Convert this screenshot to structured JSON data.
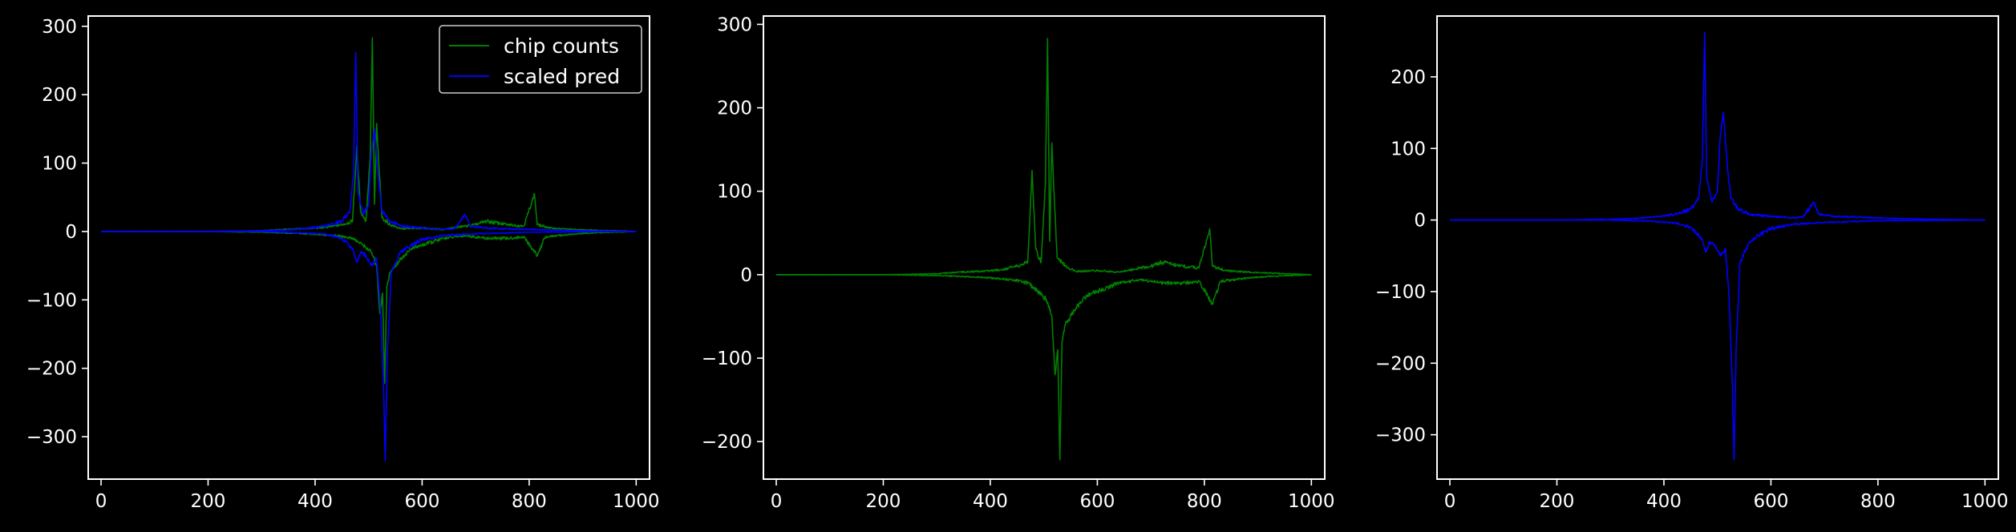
{
  "colors": {
    "background": "#000000",
    "chip": "#008000",
    "pred": "#0000ff",
    "frame": "#ffffff"
  },
  "chart_data": [
    {
      "type": "line",
      "legend": {
        "placement": "top-right",
        "entries": [
          "chip counts",
          "scaled pred"
        ]
      },
      "xlim": [
        -24,
        1025
      ],
      "ylim": [
        -362,
        315
      ],
      "xticks": [
        0,
        200,
        400,
        600,
        800,
        1000
      ],
      "yticks": [
        -300,
        -200,
        -100,
        0,
        100,
        200,
        300
      ],
      "xtick_labels": [
        "0",
        "200",
        "400",
        "600",
        "800",
        "1000"
      ],
      "ytick_labels": [
        "−300",
        "−200",
        "−100",
        "0",
        "100",
        "200",
        "300"
      ],
      "series": [
        {
          "name": "chip counts",
          "color": "#008000",
          "upper": [
            [
              0,
              0
            ],
            [
              100,
              0
            ],
            [
              200,
              0
            ],
            [
              300,
              1
            ],
            [
              340,
              3
            ],
            [
              380,
              4
            ],
            [
              420,
              6
            ],
            [
              450,
              10
            ],
            [
              470,
              15
            ],
            [
              478,
              125
            ],
            [
              485,
              30
            ],
            [
              495,
              15
            ],
            [
              503,
              110
            ],
            [
              507,
              283
            ],
            [
              511,
              40
            ],
            [
              515,
              158
            ],
            [
              519,
              100
            ],
            [
              525,
              20
            ],
            [
              540,
              10
            ],
            [
              560,
              4
            ],
            [
              600,
              5
            ],
            [
              640,
              3
            ],
            [
              680,
              8
            ],
            [
              700,
              10
            ],
            [
              720,
              15
            ],
            [
              760,
              10
            ],
            [
              790,
              8
            ],
            [
              810,
              55
            ],
            [
              815,
              10
            ],
            [
              840,
              5
            ],
            [
              880,
              3
            ],
            [
              920,
              2
            ],
            [
              1000,
              0
            ]
          ],
          "lower": [
            [
              0,
              0
            ],
            [
              100,
              0
            ],
            [
              200,
              0
            ],
            [
              300,
              -1
            ],
            [
              340,
              -2
            ],
            [
              380,
              -3
            ],
            [
              420,
              -5
            ],
            [
              450,
              -7
            ],
            [
              470,
              -10
            ],
            [
              490,
              -20
            ],
            [
              505,
              -30
            ],
            [
              515,
              -50
            ],
            [
              521,
              -120
            ],
            [
              526,
              -90
            ],
            [
              530,
              -222
            ],
            [
              534,
              -80
            ],
            [
              540,
              -60
            ],
            [
              560,
              -40
            ],
            [
              580,
              -25
            ],
            [
              600,
              -20
            ],
            [
              640,
              -10
            ],
            [
              680,
              -6
            ],
            [
              720,
              -10
            ],
            [
              760,
              -10
            ],
            [
              790,
              -8
            ],
            [
              815,
              -35
            ],
            [
              830,
              -8
            ],
            [
              880,
              -4
            ],
            [
              920,
              -2
            ],
            [
              1000,
              0
            ]
          ]
        },
        {
          "name": "scaled pred",
          "color": "#0000ff",
          "upper": [
            [
              0,
              0
            ],
            [
              100,
              0
            ],
            [
              200,
              0
            ],
            [
              300,
              1
            ],
            [
              340,
              2
            ],
            [
              380,
              4
            ],
            [
              420,
              8
            ],
            [
              450,
              15
            ],
            [
              465,
              30
            ],
            [
              472,
              88
            ],
            [
              476,
              262
            ],
            [
              480,
              60
            ],
            [
              490,
              25
            ],
            [
              500,
              40
            ],
            [
              505,
              115
            ],
            [
              511,
              150
            ],
            [
              518,
              80
            ],
            [
              525,
              30
            ],
            [
              540,
              15
            ],
            [
              560,
              8
            ],
            [
              600,
              5
            ],
            [
              640,
              3
            ],
            [
              660,
              4
            ],
            [
              680,
              25
            ],
            [
              690,
              8
            ],
            [
              720,
              5
            ],
            [
              760,
              4
            ],
            [
              800,
              3
            ],
            [
              840,
              2
            ],
            [
              900,
              1
            ],
            [
              1000,
              0
            ]
          ],
          "lower": [
            [
              0,
              0
            ],
            [
              100,
              0
            ],
            [
              200,
              0
            ],
            [
              300,
              0
            ],
            [
              340,
              -1
            ],
            [
              380,
              -2
            ],
            [
              420,
              -4
            ],
            [
              450,
              -10
            ],
            [
              470,
              -25
            ],
            [
              478,
              -45
            ],
            [
              485,
              -30
            ],
            [
              495,
              -35
            ],
            [
              505,
              -50
            ],
            [
              515,
              -40
            ],
            [
              522,
              -110
            ],
            [
              528,
              -230
            ],
            [
              531,
              -335
            ],
            [
              535,
              -180
            ],
            [
              542,
              -60
            ],
            [
              560,
              -30
            ],
            [
              580,
              -20
            ],
            [
              600,
              -12
            ],
            [
              640,
              -6
            ],
            [
              680,
              -4
            ],
            [
              720,
              -3
            ],
            [
              760,
              -2
            ],
            [
              800,
              -1
            ],
            [
              1000,
              0
            ]
          ]
        }
      ]
    },
    {
      "type": "line",
      "xlim": [
        -24,
        1025
      ],
      "ylim": [
        -245,
        310
      ],
      "xticks": [
        0,
        200,
        400,
        600,
        800,
        1000
      ],
      "yticks": [
        -200,
        -100,
        0,
        100,
        200,
        300
      ],
      "xtick_labels": [
        "0",
        "200",
        "400",
        "600",
        "800",
        "1000"
      ],
      "ytick_labels": [
        "−200",
        "−100",
        "0",
        "100",
        "200",
        "300"
      ],
      "series": [
        {
          "name": "",
          "color": "#008000",
          "upper": [
            [
              0,
              0
            ],
            [
              100,
              0
            ],
            [
              200,
              0
            ],
            [
              300,
              1
            ],
            [
              340,
              3
            ],
            [
              380,
              4
            ],
            [
              420,
              6
            ],
            [
              450,
              10
            ],
            [
              470,
              15
            ],
            [
              478,
              125
            ],
            [
              485,
              30
            ],
            [
              495,
              15
            ],
            [
              503,
              110
            ],
            [
              507,
              283
            ],
            [
              511,
              40
            ],
            [
              515,
              158
            ],
            [
              519,
              100
            ],
            [
              525,
              20
            ],
            [
              540,
              10
            ],
            [
              560,
              4
            ],
            [
              600,
              5
            ],
            [
              640,
              3
            ],
            [
              680,
              8
            ],
            [
              700,
              10
            ],
            [
              720,
              15
            ],
            [
              760,
              10
            ],
            [
              790,
              8
            ],
            [
              810,
              55
            ],
            [
              815,
              10
            ],
            [
              840,
              5
            ],
            [
              880,
              3
            ],
            [
              920,
              2
            ],
            [
              1000,
              0
            ]
          ],
          "lower": [
            [
              0,
              0
            ],
            [
              100,
              0
            ],
            [
              200,
              0
            ],
            [
              300,
              -1
            ],
            [
              340,
              -2
            ],
            [
              380,
              -3
            ],
            [
              420,
              -5
            ],
            [
              450,
              -7
            ],
            [
              470,
              -10
            ],
            [
              490,
              -20
            ],
            [
              505,
              -30
            ],
            [
              515,
              -50
            ],
            [
              521,
              -120
            ],
            [
              526,
              -90
            ],
            [
              530,
              -222
            ],
            [
              534,
              -80
            ],
            [
              540,
              -60
            ],
            [
              560,
              -40
            ],
            [
              580,
              -25
            ],
            [
              600,
              -20
            ],
            [
              640,
              -10
            ],
            [
              680,
              -6
            ],
            [
              720,
              -10
            ],
            [
              760,
              -10
            ],
            [
              790,
              -8
            ],
            [
              815,
              -35
            ],
            [
              830,
              -8
            ],
            [
              880,
              -4
            ],
            [
              920,
              -2
            ],
            [
              1000,
              0
            ]
          ]
        }
      ]
    },
    {
      "type": "line",
      "xlim": [
        -24,
        1025
      ],
      "ylim": [
        -362,
        285
      ],
      "xticks": [
        0,
        200,
        400,
        600,
        800,
        1000
      ],
      "yticks": [
        -300,
        -200,
        -100,
        0,
        100,
        200
      ],
      "xtick_labels": [
        "0",
        "200",
        "400",
        "600",
        "800",
        "1000"
      ],
      "ytick_labels": [
        "−300",
        "−200",
        "−100",
        "0",
        "100",
        "200"
      ],
      "series": [
        {
          "name": "",
          "color": "#0000ff",
          "upper": [
            [
              0,
              0
            ],
            [
              100,
              0
            ],
            [
              200,
              0
            ],
            [
              300,
              1
            ],
            [
              340,
              2
            ],
            [
              380,
              4
            ],
            [
              420,
              8
            ],
            [
              450,
              15
            ],
            [
              465,
              30
            ],
            [
              472,
              88
            ],
            [
              476,
              262
            ],
            [
              480,
              60
            ],
            [
              490,
              25
            ],
            [
              500,
              40
            ],
            [
              505,
              115
            ],
            [
              511,
              150
            ],
            [
              518,
              80
            ],
            [
              525,
              30
            ],
            [
              540,
              15
            ],
            [
              560,
              8
            ],
            [
              600,
              5
            ],
            [
              640,
              3
            ],
            [
              660,
              4
            ],
            [
              680,
              25
            ],
            [
              690,
              8
            ],
            [
              720,
              5
            ],
            [
              760,
              4
            ],
            [
              800,
              3
            ],
            [
              840,
              2
            ],
            [
              900,
              1
            ],
            [
              1000,
              0
            ]
          ],
          "lower": [
            [
              0,
              0
            ],
            [
              100,
              0
            ],
            [
              200,
              0
            ],
            [
              300,
              0
            ],
            [
              340,
              -1
            ],
            [
              380,
              -2
            ],
            [
              420,
              -4
            ],
            [
              450,
              -10
            ],
            [
              470,
              -25
            ],
            [
              478,
              -45
            ],
            [
              485,
              -30
            ],
            [
              495,
              -35
            ],
            [
              505,
              -50
            ],
            [
              515,
              -40
            ],
            [
              522,
              -110
            ],
            [
              528,
              -230
            ],
            [
              531,
              -335
            ],
            [
              535,
              -180
            ],
            [
              542,
              -60
            ],
            [
              560,
              -30
            ],
            [
              580,
              -20
            ],
            [
              600,
              -12
            ],
            [
              640,
              -6
            ],
            [
              680,
              -4
            ],
            [
              720,
              -3
            ],
            [
              760,
              -2
            ],
            [
              800,
              -1
            ],
            [
              1000,
              0
            ]
          ]
        }
      ]
    }
  ]
}
